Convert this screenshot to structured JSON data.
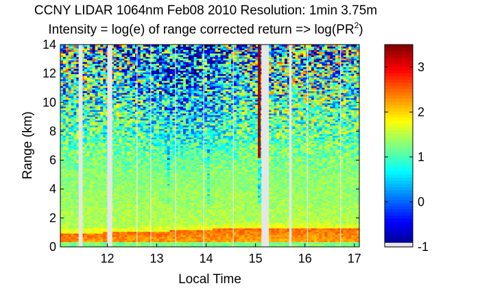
{
  "chart_data": {
    "type": "heatmap",
    "title_line1": "CCNY LIDAR 1064nm Feb08 2010 Resolution: 1min 3.75m",
    "title_line2_prefix": "Intensity = log(e) of range corrected return => log(PR",
    "title_line2_sup": "2",
    "title_line2_suffix": ")",
    "xlabel": "Local Time",
    "ylabel": "Range (km)",
    "xlim": [
      11.05,
      17.1
    ],
    "ylim": [
      0,
      14
    ],
    "xticks": [
      12,
      13,
      14,
      15,
      16,
      17
    ],
    "xtick_labels": [
      "12",
      "13",
      "14",
      "15",
      "16",
      "17"
    ],
    "yticks": [
      0,
      2,
      4,
      6,
      8,
      10,
      12,
      14
    ],
    "ytick_labels": [
      "0",
      "2",
      "4",
      "6",
      "8",
      "10",
      "12",
      "14"
    ],
    "colorbar": {
      "colormap": "jet",
      "clim": [
        -1,
        3.5
      ],
      "ticks": [
        -1,
        0,
        1,
        2,
        3
      ],
      "tick_labels": [
        "-1",
        "0",
        "1",
        "2",
        "3"
      ]
    },
    "gaps_hours": [
      [
        11.42,
        11.5
      ],
      [
        12.0,
        12.1
      ],
      [
        15.12,
        15.27
      ],
      [
        15.68,
        15.73
      ]
    ],
    "thin_gaps_hours": [
      12.6,
      12.88,
      13.38,
      13.95,
      14.55,
      16.05,
      16.72
    ],
    "boundary_layer_top_km": [
      [
        11.05,
        0.95
      ],
      [
        12.5,
        1.05
      ],
      [
        13.5,
        1.15
      ],
      [
        14.5,
        1.3
      ],
      [
        15.3,
        1.35
      ],
      [
        16.5,
        1.3
      ],
      [
        17.1,
        1.25
      ]
    ],
    "cloud_hours": [
      15.05,
      15.12
    ],
    "cloud_base_km": 6.2,
    "dropouts_hours": [
      13.25,
      14.05,
      15.1
    ]
  }
}
